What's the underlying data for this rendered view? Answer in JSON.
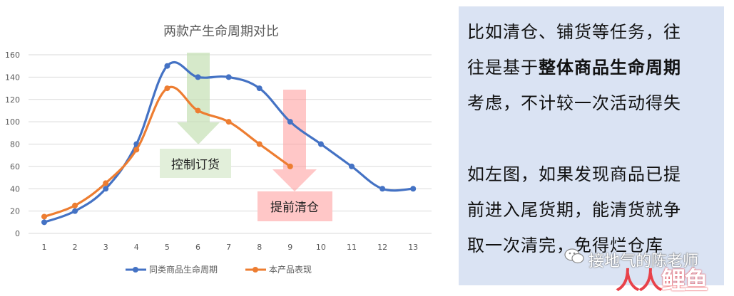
{
  "chart_data": {
    "type": "line",
    "title": "两款产生命周期对比",
    "categories": [
      "1",
      "2",
      "3",
      "4",
      "5",
      "6",
      "7",
      "8",
      "9",
      "10",
      "11",
      "12",
      "13"
    ],
    "ylim": [
      0,
      160
    ],
    "yticks": [
      "0",
      "20",
      "40",
      "60",
      "80",
      "100",
      "120",
      "140",
      "160"
    ],
    "grid": true,
    "legend_position": "bottom",
    "series": [
      {
        "name": "同类商品生命周期",
        "color": "#4472c4",
        "values": [
          10,
          20,
          40,
          80,
          150,
          140,
          140,
          130,
          100,
          80,
          60,
          40,
          40
        ]
      },
      {
        "name": "本产品表现",
        "color": "#ed7d31",
        "values": [
          15,
          25,
          45,
          75,
          130,
          110,
          100,
          80,
          60,
          null,
          null,
          null,
          null
        ]
      }
    ],
    "annotations": [
      {
        "label": "控制订货",
        "color": "#e2efda",
        "arrow_color": "#c5e0b4"
      },
      {
        "label": "提前清仓",
        "color": "#ffc7c7",
        "arrow_color": "#ff9999"
      }
    ]
  },
  "panel": {
    "p1_line1": "比如清仓、铺货等任务，往",
    "p1_line2_a": "往是基于",
    "p1_line2_b": "整体商品生命周期",
    "p1_line3": "考虑，不计较一次活动得失",
    "p2_line1": "如左图，如果发现商品已提",
    "p2_line2": "前进入尾货期，能清货就争",
    "p2_line3": "取一次清完，免得烂仓库"
  },
  "watermark": {
    "text": "接地气的陈老师",
    "logo_a": "人人",
    "logo_b": "鲤鱼"
  }
}
